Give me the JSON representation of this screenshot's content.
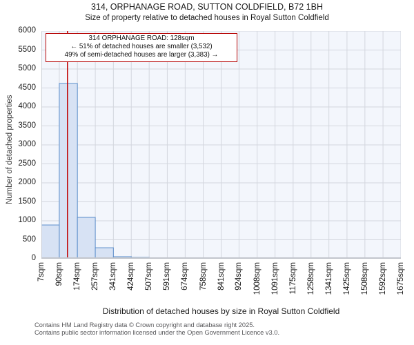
{
  "chart_data": {
    "type": "bar",
    "title": "314, ORPHANAGE ROAD, SUTTON COLDFIELD, B72 1BH",
    "subtitle": "Size of property relative to detached houses in Royal Sutton Coldfield",
    "xlabel": "Distribution of detached houses by size in Royal Sutton Coldfield",
    "ylabel": "Number of detached properties",
    "bin_edges_sqm": [
      7,
      90,
      174,
      257,
      341,
      424,
      507,
      591,
      674,
      758,
      841,
      924,
      1008,
      1091,
      1175,
      1258,
      1341,
      1425,
      1508,
      1592,
      1675
    ],
    "x_tick_labels": [
      "7sqm",
      "90sqm",
      "174sqm",
      "257sqm",
      "341sqm",
      "424sqm",
      "507sqm",
      "591sqm",
      "674sqm",
      "758sqm",
      "841sqm",
      "924sqm",
      "1008sqm",
      "1091sqm",
      "1175sqm",
      "1258sqm",
      "1341sqm",
      "1425sqm",
      "1508sqm",
      "1592sqm",
      "1675sqm"
    ],
    "values": [
      890,
      4620,
      1090,
      290,
      55,
      35,
      0,
      0,
      0,
      0,
      0,
      0,
      0,
      0,
      0,
      0,
      0,
      0,
      0,
      0
    ],
    "ylim": [
      0,
      6000
    ],
    "ytick_step": 500,
    "grid": true,
    "marker_line": {
      "value_sqm": 128,
      "color": "#c00000"
    },
    "annotation": {
      "line1": "314 ORPHANAGE ROAD: 128sqm",
      "line2": "← 51% of detached houses are smaller (3,532)",
      "line3": "49% of semi-detached houses are larger (3,383) →"
    },
    "colors": {
      "bar_fill": "#d7e2f4",
      "bar_edge": "#5b8ecb",
      "grid": "#d3d6de",
      "plot_bg": "#f3f6fc",
      "axis_line": "#c2c5cc",
      "marker": "#c00000"
    }
  },
  "footer": {
    "line1": "Contains HM Land Registry data © Crown copyright and database right 2025.",
    "line2": "Contains public sector information licensed under the Open Government Licence v3.0."
  }
}
